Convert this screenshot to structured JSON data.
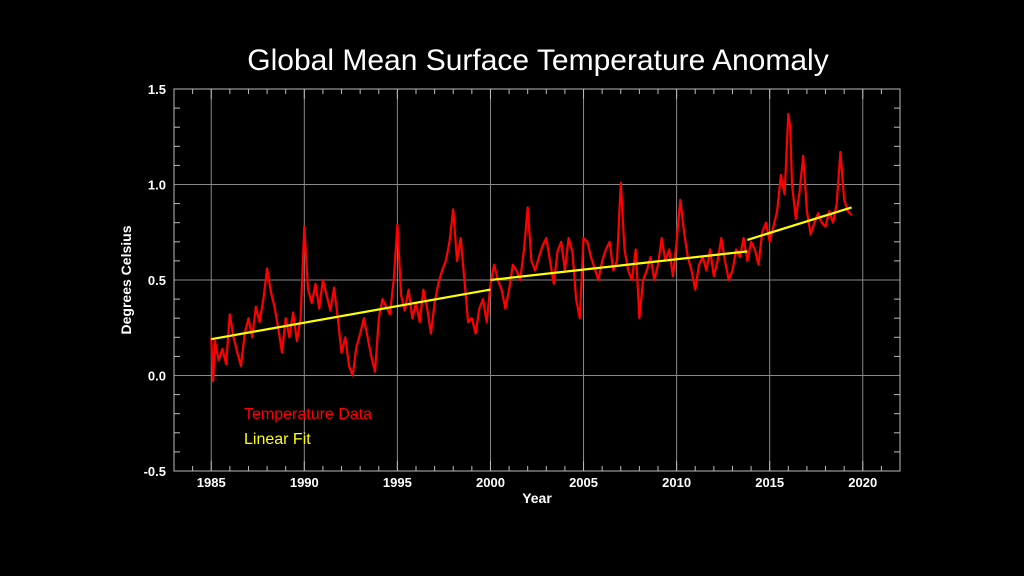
{
  "chart_data": {
    "type": "line",
    "title": "Global Mean Surface Temperature Anomaly",
    "xlabel": "Year",
    "ylabel": "Degrees Celsius",
    "xlim": [
      1983,
      2022
    ],
    "ylim": [
      -0.5,
      1.5
    ],
    "x_ticks": [
      1985,
      1990,
      1995,
      2000,
      2005,
      2010,
      2015,
      2020
    ],
    "y_ticks": [
      "-0.5",
      "0.0",
      "0.5",
      "1.0",
      "1.5"
    ],
    "grid": true,
    "legend_position": "lower-left",
    "series": [
      {
        "name": "Temperature Data",
        "color": "#ff0000",
        "x": [
          1985.0,
          1985.1,
          1985.2,
          1985.4,
          1985.6,
          1985.8,
          1986.0,
          1986.2,
          1986.4,
          1986.6,
          1986.8,
          1987.0,
          1987.2,
          1987.4,
          1987.6,
          1987.8,
          1988.0,
          1988.2,
          1988.4,
          1988.6,
          1988.8,
          1989.0,
          1989.2,
          1989.4,
          1989.6,
          1989.8,
          1990.0,
          1990.2,
          1990.4,
          1990.6,
          1990.8,
          1991.0,
          1991.2,
          1991.4,
          1991.6,
          1991.8,
          1992.0,
          1992.2,
          1992.4,
          1992.6,
          1992.8,
          1993.0,
          1993.2,
          1993.4,
          1993.6,
          1993.8,
          1994.0,
          1994.2,
          1994.4,
          1994.6,
          1994.8,
          1995.0,
          1995.2,
          1995.4,
          1995.6,
          1995.8,
          1996.0,
          1996.2,
          1996.4,
          1996.6,
          1996.8,
          1997.0,
          1997.2,
          1997.4,
          1997.6,
          1997.8,
          1998.0,
          1998.2,
          1998.4,
          1998.6,
          1998.8,
          1999.0,
          1999.2,
          1999.4,
          1999.6,
          1999.8,
          2000.0,
          2000.2,
          2000.4,
          2000.6,
          2000.8,
          2001.0,
          2001.2,
          2001.4,
          2001.6,
          2001.8,
          2002.0,
          2002.2,
          2002.4,
          2002.6,
          2002.8,
          2003.0,
          2003.2,
          2003.4,
          2003.6,
          2003.8,
          2004.0,
          2004.2,
          2004.4,
          2004.6,
          2004.8,
          2005.0,
          2005.2,
          2005.4,
          2005.6,
          2005.8,
          2006.0,
          2006.2,
          2006.4,
          2006.6,
          2006.8,
          2007.0,
          2007.2,
          2007.4,
          2007.6,
          2007.8,
          2008.0,
          2008.2,
          2008.4,
          2008.6,
          2008.8,
          2009.0,
          2009.2,
          2009.4,
          2009.6,
          2009.8,
          2010.0,
          2010.2,
          2010.4,
          2010.6,
          2010.8,
          2011.0,
          2011.2,
          2011.4,
          2011.6,
          2011.8,
          2012.0,
          2012.2,
          2012.4,
          2012.6,
          2012.8,
          2013.0,
          2013.2,
          2013.4,
          2013.6,
          2013.8,
          2014.0,
          2014.2,
          2014.4,
          2014.6,
          2014.8,
          2015.0,
          2015.2,
          2015.4,
          2015.6,
          2015.8,
          2016.0,
          2016.1,
          2016.2,
          2016.4,
          2016.6,
          2016.8,
          2017.0,
          2017.2,
          2017.4,
          2017.6,
          2017.8,
          2018.0,
          2018.2,
          2018.4,
          2018.6,
          2018.8,
          2019.0,
          2019.2,
          2019.4
        ],
        "y": [
          0.2,
          -0.03,
          0.18,
          0.08,
          0.14,
          0.06,
          0.32,
          0.2,
          0.12,
          0.05,
          0.22,
          0.3,
          0.2,
          0.36,
          0.28,
          0.4,
          0.56,
          0.44,
          0.36,
          0.25,
          0.12,
          0.3,
          0.2,
          0.33,
          0.18,
          0.3,
          0.78,
          0.45,
          0.38,
          0.48,
          0.35,
          0.5,
          0.42,
          0.34,
          0.46,
          0.3,
          0.12,
          0.2,
          0.05,
          0.0,
          0.15,
          0.22,
          0.3,
          0.2,
          0.1,
          0.02,
          0.3,
          0.4,
          0.36,
          0.32,
          0.5,
          0.79,
          0.42,
          0.34,
          0.45,
          0.3,
          0.38,
          0.28,
          0.45,
          0.35,
          0.22,
          0.38,
          0.48,
          0.55,
          0.6,
          0.7,
          0.87,
          0.6,
          0.72,
          0.5,
          0.28,
          0.3,
          0.22,
          0.35,
          0.4,
          0.28,
          0.48,
          0.58,
          0.5,
          0.45,
          0.35,
          0.45,
          0.58,
          0.55,
          0.5,
          0.66,
          0.88,
          0.6,
          0.55,
          0.62,
          0.68,
          0.72,
          0.6,
          0.48,
          0.65,
          0.7,
          0.55,
          0.72,
          0.65,
          0.4,
          0.3,
          0.72,
          0.7,
          0.62,
          0.56,
          0.5,
          0.6,
          0.66,
          0.7,
          0.55,
          0.6,
          1.01,
          0.66,
          0.55,
          0.5,
          0.66,
          0.3,
          0.5,
          0.55,
          0.62,
          0.5,
          0.58,
          0.72,
          0.6,
          0.66,
          0.52,
          0.7,
          0.92,
          0.75,
          0.62,
          0.55,
          0.45,
          0.58,
          0.62,
          0.55,
          0.66,
          0.52,
          0.6,
          0.72,
          0.6,
          0.5,
          0.55,
          0.66,
          0.62,
          0.72,
          0.6,
          0.7,
          0.66,
          0.58,
          0.75,
          0.8,
          0.7,
          0.78,
          0.86,
          1.05,
          0.95,
          1.37,
          1.3,
          1.0,
          0.82,
          0.96,
          1.15,
          0.86,
          0.74,
          0.8,
          0.85,
          0.8,
          0.78,
          0.86,
          0.8,
          0.9,
          1.17,
          0.92,
          0.86,
          0.84
        ]
      },
      {
        "name": "Linear Fit",
        "color": "#ffff00",
        "segments": [
          {
            "x": [
              1985.0,
              2000.0
            ],
            "y": [
              0.19,
              0.45
            ]
          },
          {
            "x": [
              2000.0,
              2013.8
            ],
            "y": [
              0.5,
              0.65
            ]
          },
          {
            "x": [
              2013.8,
              2019.4
            ],
            "y": [
              0.71,
              0.88
            ]
          }
        ]
      }
    ]
  }
}
